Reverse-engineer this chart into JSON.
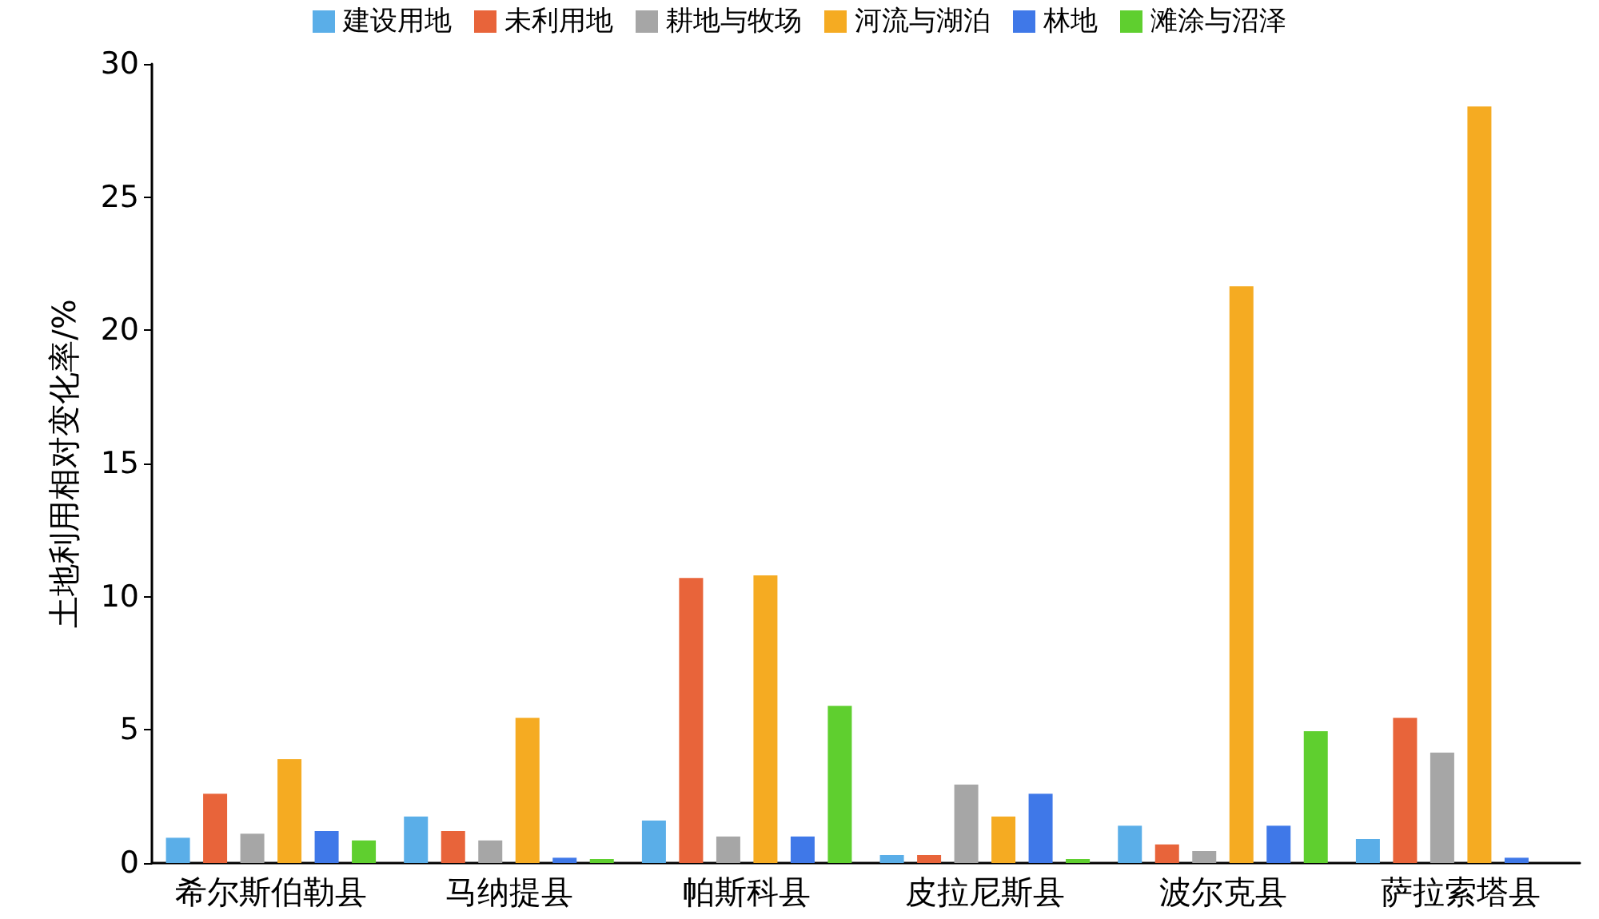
{
  "chart_data": {
    "type": "bar",
    "ylabel": "土地利用相对变化率/%",
    "categories": [
      "希尔斯伯勒县",
      "马纳提县",
      "帕斯科县",
      "皮拉尼斯县",
      "波尔克县",
      "萨拉索塔县"
    ],
    "series": [
      {
        "name": "建设用地",
        "color": "#5aaee8",
        "values": [
          0.95,
          1.75,
          1.6,
          0.3,
          1.4,
          0.9
        ]
      },
      {
        "name": "未利用地",
        "color": "#e8643a",
        "values": [
          2.6,
          1.2,
          10.7,
          0.3,
          0.7,
          5.45
        ]
      },
      {
        "name": "耕地与牧场",
        "color": "#a6a6a6",
        "values": [
          1.1,
          0.85,
          1.0,
          2.95,
          0.45,
          4.15
        ]
      },
      {
        "name": "河流与湖泊",
        "color": "#f5ab22",
        "values": [
          3.9,
          5.45,
          10.8,
          1.75,
          21.65,
          28.4
        ]
      },
      {
        "name": "林地",
        "color": "#3f78e8",
        "values": [
          1.2,
          0.2,
          1.0,
          2.6,
          1.4,
          0.2
        ]
      },
      {
        "name": "滩涂与沼泽",
        "color": "#5fcf2f",
        "values": [
          0.85,
          0.15,
          5.9,
          0.15,
          4.95,
          null
        ]
      }
    ],
    "ylim": [
      0,
      30
    ],
    "yticks": [
      0,
      5,
      10,
      15,
      20,
      25,
      30
    ],
    "grid": false,
    "legend": "top"
  }
}
